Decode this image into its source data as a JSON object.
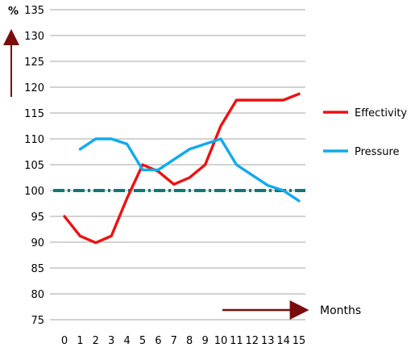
{
  "chart_data": {
    "type": "line",
    "title": "",
    "xlabel": "Months",
    "ylabel": "%",
    "x": [
      0,
      1,
      2,
      3,
      4,
      5,
      6,
      7,
      8,
      9,
      10,
      11,
      12,
      13,
      14,
      15
    ],
    "xlim": [
      0,
      15
    ],
    "ylim": [
      75,
      135
    ],
    "yticks": [
      75,
      80,
      85,
      90,
      95,
      100,
      105,
      110,
      115,
      120,
      125,
      130,
      135
    ],
    "grid": "horizontal",
    "legend_position": "right",
    "series": [
      {
        "name": "Effectivity",
        "color": "#ee1111",
        "x": [
          0,
          1,
          2,
          3,
          4,
          5,
          6,
          7,
          8,
          9,
          10,
          11,
          12,
          13,
          14,
          15
        ],
        "values": [
          95,
          91.2,
          89.9,
          91.2,
          98.5,
          105,
          103.7,
          101.2,
          102.5,
          105,
          112.5,
          117.5,
          117.5,
          117.5,
          117.5,
          118.7
        ]
      },
      {
        "name": "Pressure",
        "color": "#11aaee",
        "x": [
          1,
          2,
          3,
          4,
          5,
          6,
          7,
          8,
          9,
          10,
          11,
          12,
          13,
          14,
          15
        ],
        "values": [
          108,
          110,
          110,
          109,
          104,
          104,
          106,
          108,
          109,
          110,
          105,
          103,
          101,
          100,
          98
        ]
      }
    ],
    "reference_lines": [
      {
        "y": 100,
        "color": "#117777",
        "style": "dash-dot"
      }
    ],
    "arrows": [
      {
        "direction": "up",
        "color": "#7a0c0c"
      },
      {
        "direction": "right",
        "color": "#7a0c0c"
      }
    ]
  }
}
